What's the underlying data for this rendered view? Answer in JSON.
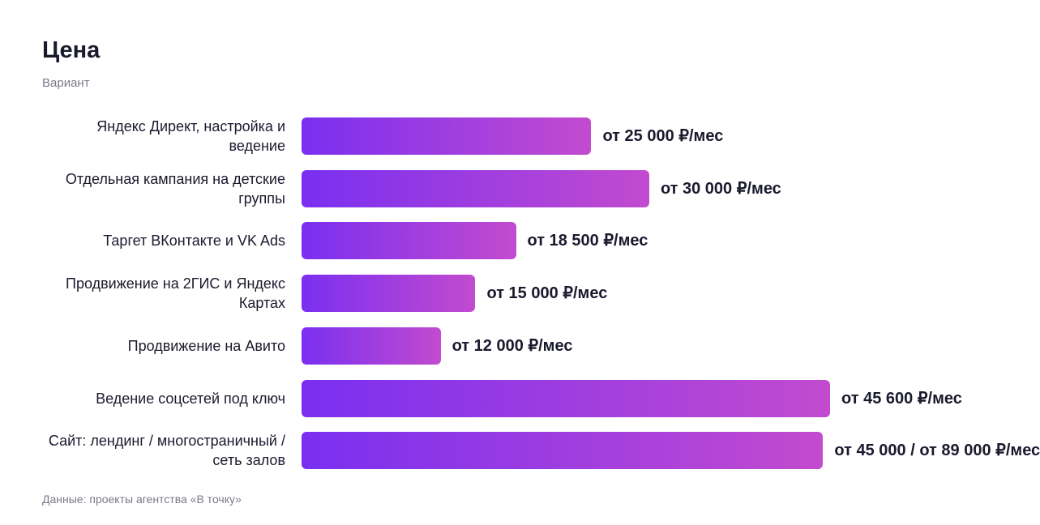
{
  "chart_data": {
    "type": "bar",
    "orientation": "horizontal",
    "title": "Цена",
    "subtitle": "Вариант",
    "categories": [
      "Яндекс Директ, настройка и ведение",
      "Отдельная кампания на детские группы",
      "Таргет ВКонтакте и VK Ads",
      "Продвижение на 2ГИС и Яндекс Картах",
      "Продвижение на Авито",
      "Ведение соцсетей под ключ",
      "Сайт: лендинг / многостраничный / сеть залов"
    ],
    "values": [
      25000,
      30000,
      18500,
      15000,
      12000,
      45600,
      45000
    ],
    "value_labels": [
      "от 25 000 ₽/мес",
      "от 30 000 ₽/мес",
      "от 18 500 ₽/мес",
      "от 15 000 ₽/мес",
      "от 12 000 ₽/мес",
      "от 45 600 ₽/мес",
      "от 45 000 / от 89 000 ₽/мес"
    ],
    "gradient": [
      "#7a2ff0",
      "#c24bcf"
    ],
    "source": "Данные: проекты агентства «В точку»"
  }
}
